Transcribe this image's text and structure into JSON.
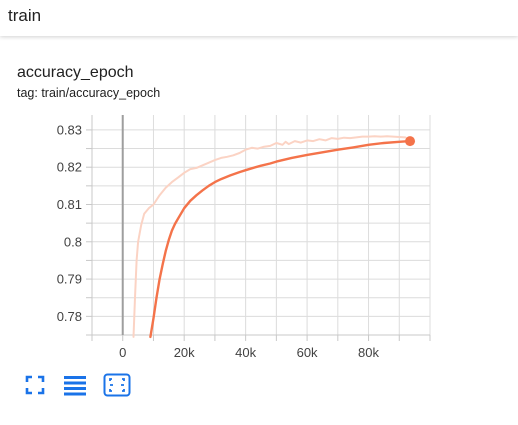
{
  "header": {
    "title": "train"
  },
  "card": {
    "title": "accuracy_epoch",
    "tag": "tag: train/accuracy_epoch"
  },
  "toolbar": {
    "buttons": [
      {
        "icon": "fullscreen-icon"
      },
      {
        "icon": "lines-icon"
      },
      {
        "icon": "fit-domain-icon"
      }
    ]
  },
  "colors": {
    "main": "#f4734a",
    "raw": "#fbd3c4",
    "accent": "#1a73e8"
  },
  "chart_data": {
    "type": "line",
    "xlim": [
      -10000,
      100000
    ],
    "ylim": [
      0.775,
      0.834
    ],
    "x_ticks": [
      0,
      20000,
      40000,
      60000,
      80000
    ],
    "x_tick_labels": [
      "0",
      "20k",
      "40k",
      "60k",
      "80k"
    ],
    "y_ticks": [
      0.78,
      0.79,
      0.8,
      0.81,
      0.82,
      0.83
    ],
    "y_tick_labels": [
      "0.78",
      "0.79",
      "0.8",
      "0.81",
      "0.82",
      "0.83"
    ],
    "grid": true,
    "series": [
      {
        "role": "raw",
        "x": [
          3500,
          4000,
          4500,
          5000,
          6000,
          7000,
          8500,
          10000,
          12000,
          14000,
          16000,
          18000,
          20000,
          22000,
          24000,
          26000,
          28000,
          30000,
          32000,
          34000,
          36000,
          38000,
          40000,
          42000,
          44000,
          46000,
          48000,
          50000,
          52000,
          53000,
          54000,
          56000,
          58000,
          60000,
          62000,
          64000,
          66000,
          68000,
          70000,
          72000,
          74000,
          76000,
          78000,
          80000,
          82000,
          84000,
          86000,
          88000,
          90000,
          92000
        ],
        "y": [
          0.7745,
          0.785,
          0.795,
          0.8,
          0.8045,
          0.8075,
          0.809,
          0.81,
          0.8125,
          0.8145,
          0.816,
          0.8172,
          0.8185,
          0.8195,
          0.8198,
          0.8205,
          0.8212,
          0.8219,
          0.8225,
          0.8228,
          0.8232,
          0.8238,
          0.8247,
          0.8252,
          0.825,
          0.8255,
          0.8257,
          0.8265,
          0.826,
          0.8268,
          0.8262,
          0.827,
          0.8266,
          0.8272,
          0.827,
          0.8275,
          0.8272,
          0.8278,
          0.8276,
          0.8279,
          0.8278,
          0.828,
          0.8282,
          0.8282,
          0.8283,
          0.8282,
          0.8283,
          0.8282,
          0.8281,
          0.828
        ]
      },
      {
        "role": "smoothed",
        "x": [
          9000,
          10000,
          11000,
          12000,
          13000,
          14000,
          15000,
          16000,
          17000,
          18000,
          20000,
          22000,
          24000,
          26000,
          28000,
          30000,
          32000,
          35000,
          38000,
          40000,
          42000,
          45000,
          48000,
          50000,
          55000,
          60000,
          65000,
          70000,
          75000,
          80000,
          85000,
          90000,
          93500
        ],
        "y": [
          0.7745,
          0.7795,
          0.785,
          0.79,
          0.794,
          0.7975,
          0.8005,
          0.803,
          0.8048,
          0.8062,
          0.809,
          0.811,
          0.8125,
          0.8138,
          0.815,
          0.816,
          0.8168,
          0.8178,
          0.8187,
          0.8192,
          0.8197,
          0.8204,
          0.821,
          0.8215,
          0.8225,
          0.8233,
          0.824,
          0.8247,
          0.8253,
          0.826,
          0.8265,
          0.8268,
          0.827
        ]
      }
    ],
    "marker": {
      "x": 93500,
      "y": 0.827
    }
  }
}
